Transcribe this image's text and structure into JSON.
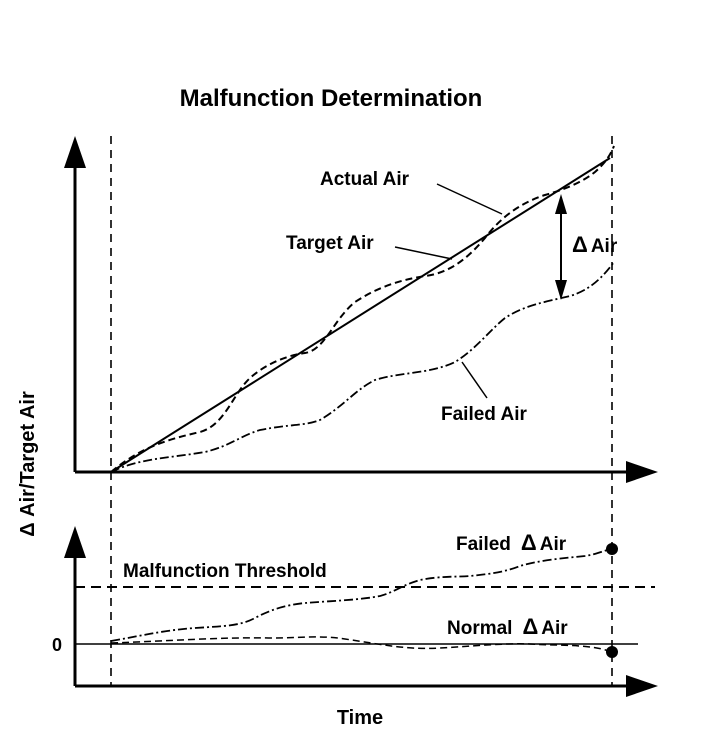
{
  "title": "Malfunction Determination",
  "labels": {
    "actual_air": "Actual Air",
    "target_air": "Target Air",
    "failed_air": "Failed Air",
    "delta_air_symbol": "Δ",
    "delta_air_text": "Air",
    "failed_delta_air_prefix": "Failed",
    "normal_delta_air_prefix": "Normal",
    "malfunction_threshold": "Malfunction Threshold",
    "zero_tick": "0"
  },
  "axes": {
    "y_label": "Δ Air/Target Air",
    "x_label": "Time"
  },
  "colors": {
    "ink": "#000000",
    "background": "#ffffff"
  }
}
